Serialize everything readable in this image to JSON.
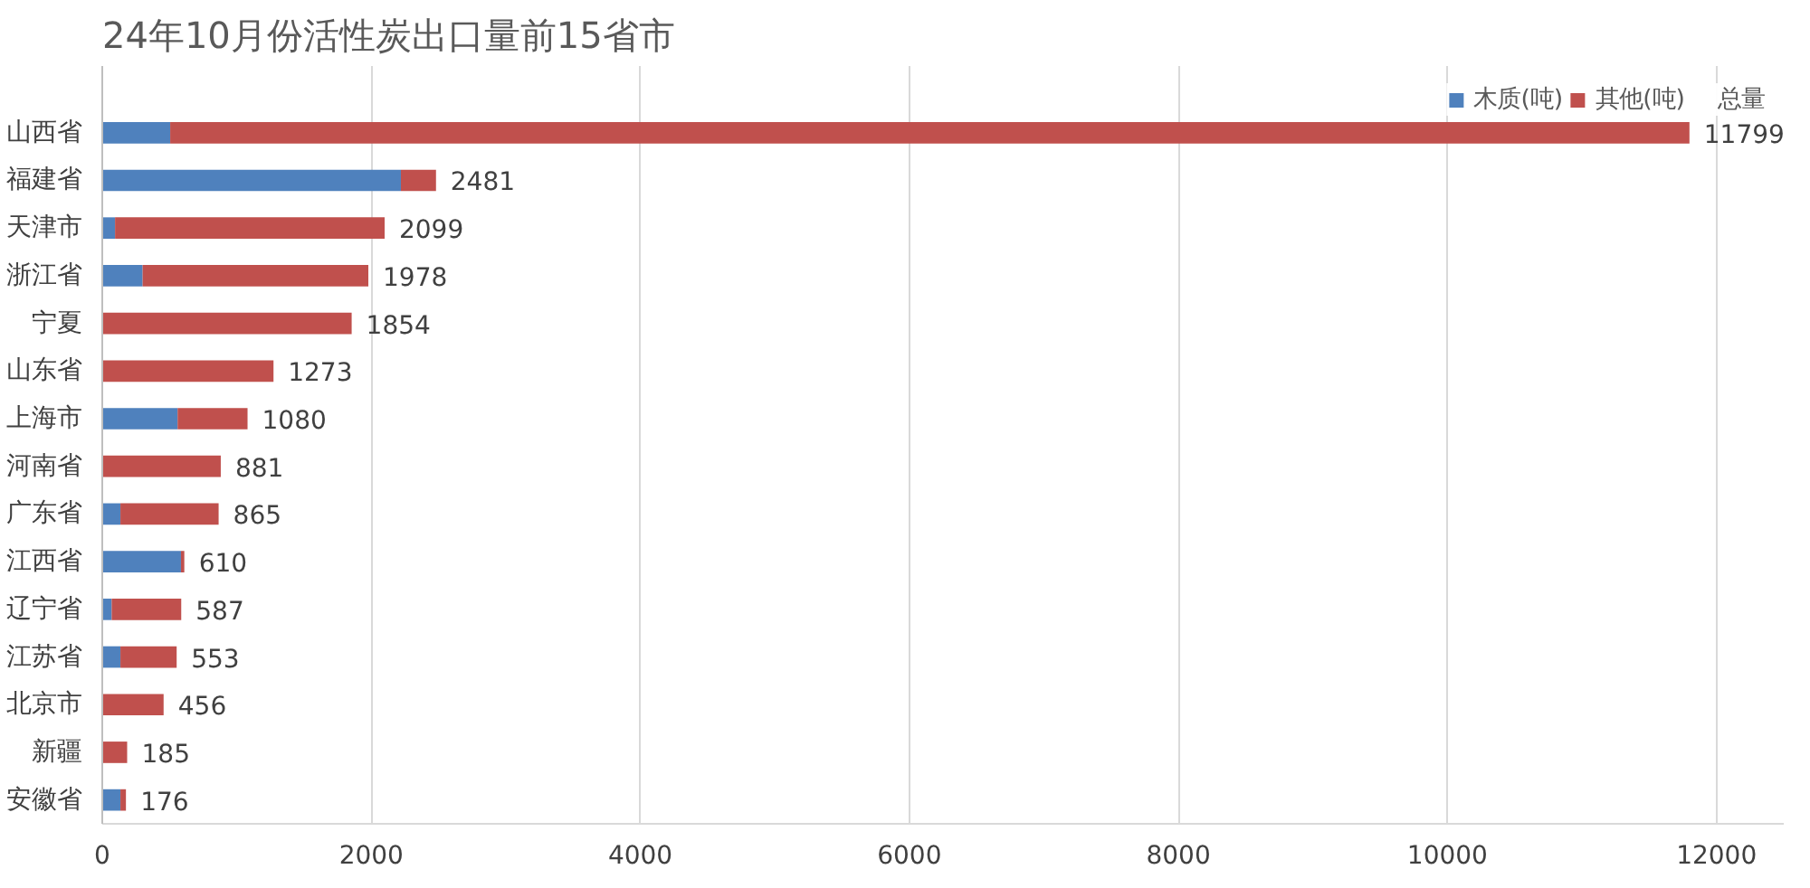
{
  "chart_data": {
    "type": "bar",
    "orientation": "horizontal",
    "stacked": true,
    "title": "24年10月份活性炭出口量前15省市",
    "categories": [
      "山西省",
      "福建省",
      "天津市",
      "浙江省",
      "宁夏",
      "山东省",
      "上海市",
      "河南省",
      "广东省",
      "江西省",
      "辽宁省",
      "江苏省",
      "北京市",
      "新疆",
      "安徽省"
    ],
    "series": [
      {
        "name": "木质(吨)",
        "color": "#4f81bd",
        "values": [
          505,
          2220,
          95,
          300,
          0,
          0,
          560,
          0,
          135,
          585,
          70,
          135,
          0,
          0,
          135
        ]
      },
      {
        "name": "其他(吨)",
        "color": "#c0504d",
        "values": [
          11294,
          261,
          2004,
          1678,
          1854,
          1273,
          520,
          881,
          730,
          25,
          517,
          418,
          456,
          185,
          41
        ]
      },
      {
        "name": "总量",
        "color": null,
        "values": [
          null,
          null,
          null,
          null,
          null,
          null,
          null,
          null,
          null,
          null,
          null,
          null,
          null,
          null,
          null
        ]
      }
    ],
    "totals": [
      "11799",
      "2481",
      "2099",
      "1978",
      "1854",
      "1273",
      "1080",
      "881",
      "865",
      "610",
      "587",
      "553",
      "456",
      "185",
      "176"
    ],
    "xlim": [
      0,
      12500
    ],
    "xticks": [
      0,
      2000,
      4000,
      6000,
      8000,
      10000,
      12000
    ],
    "grid": "x",
    "legend": "top right"
  }
}
